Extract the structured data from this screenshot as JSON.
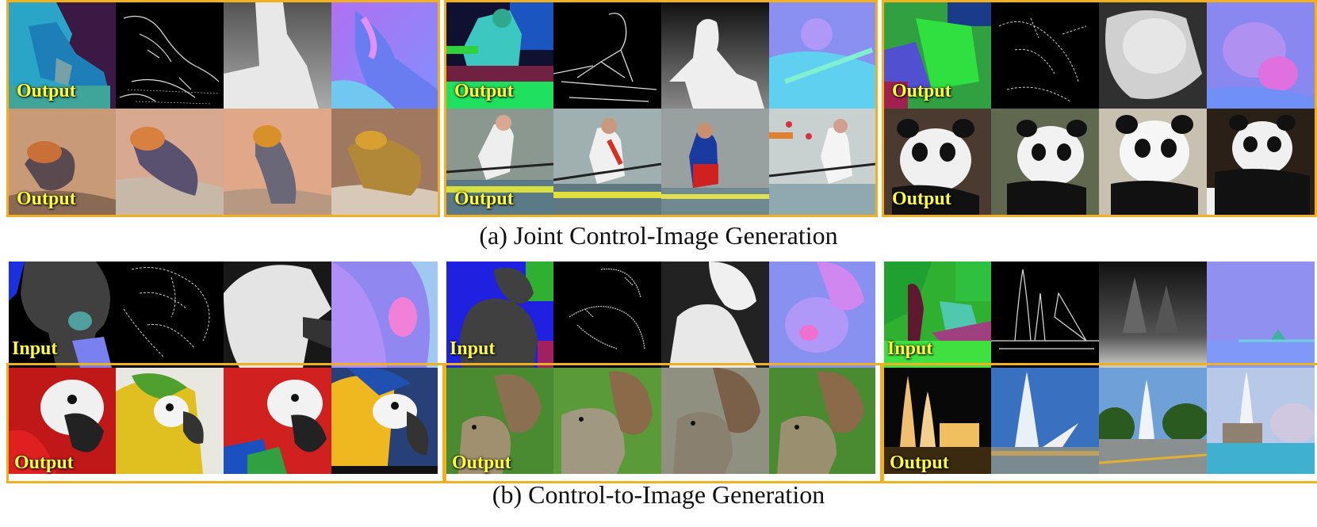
{
  "captions": {
    "a": "(a) Joint Control-Image Generation",
    "b": "(b) Control-to-Image Generation"
  },
  "labels": {
    "input": "Input",
    "output": "Output"
  },
  "colors": {
    "frame": "#f0b020",
    "label": "#ffff33"
  },
  "panels": [
    {
      "subject": "lizard",
      "row1_label": "Output",
      "row2_label": "Output",
      "row1_framed": true
    },
    {
      "subject": "rower",
      "row1_label": "Output",
      "row2_label": "Output",
      "row1_framed": true
    },
    {
      "subject": "panda",
      "row1_label": "Output",
      "row2_label": "Output",
      "row1_framed": true
    },
    {
      "subject": "parrot",
      "row1_label": "Input",
      "row2_label": "Output",
      "row1_framed": false
    },
    {
      "subject": "squirrel",
      "row1_label": "Input",
      "row2_label": "Output",
      "row1_framed": false
    },
    {
      "subject": "fountain",
      "row1_label": "Input",
      "row2_label": "Output",
      "row1_framed": false
    }
  ],
  "control_types": [
    "segmentation",
    "edge",
    "depth",
    "normal"
  ]
}
